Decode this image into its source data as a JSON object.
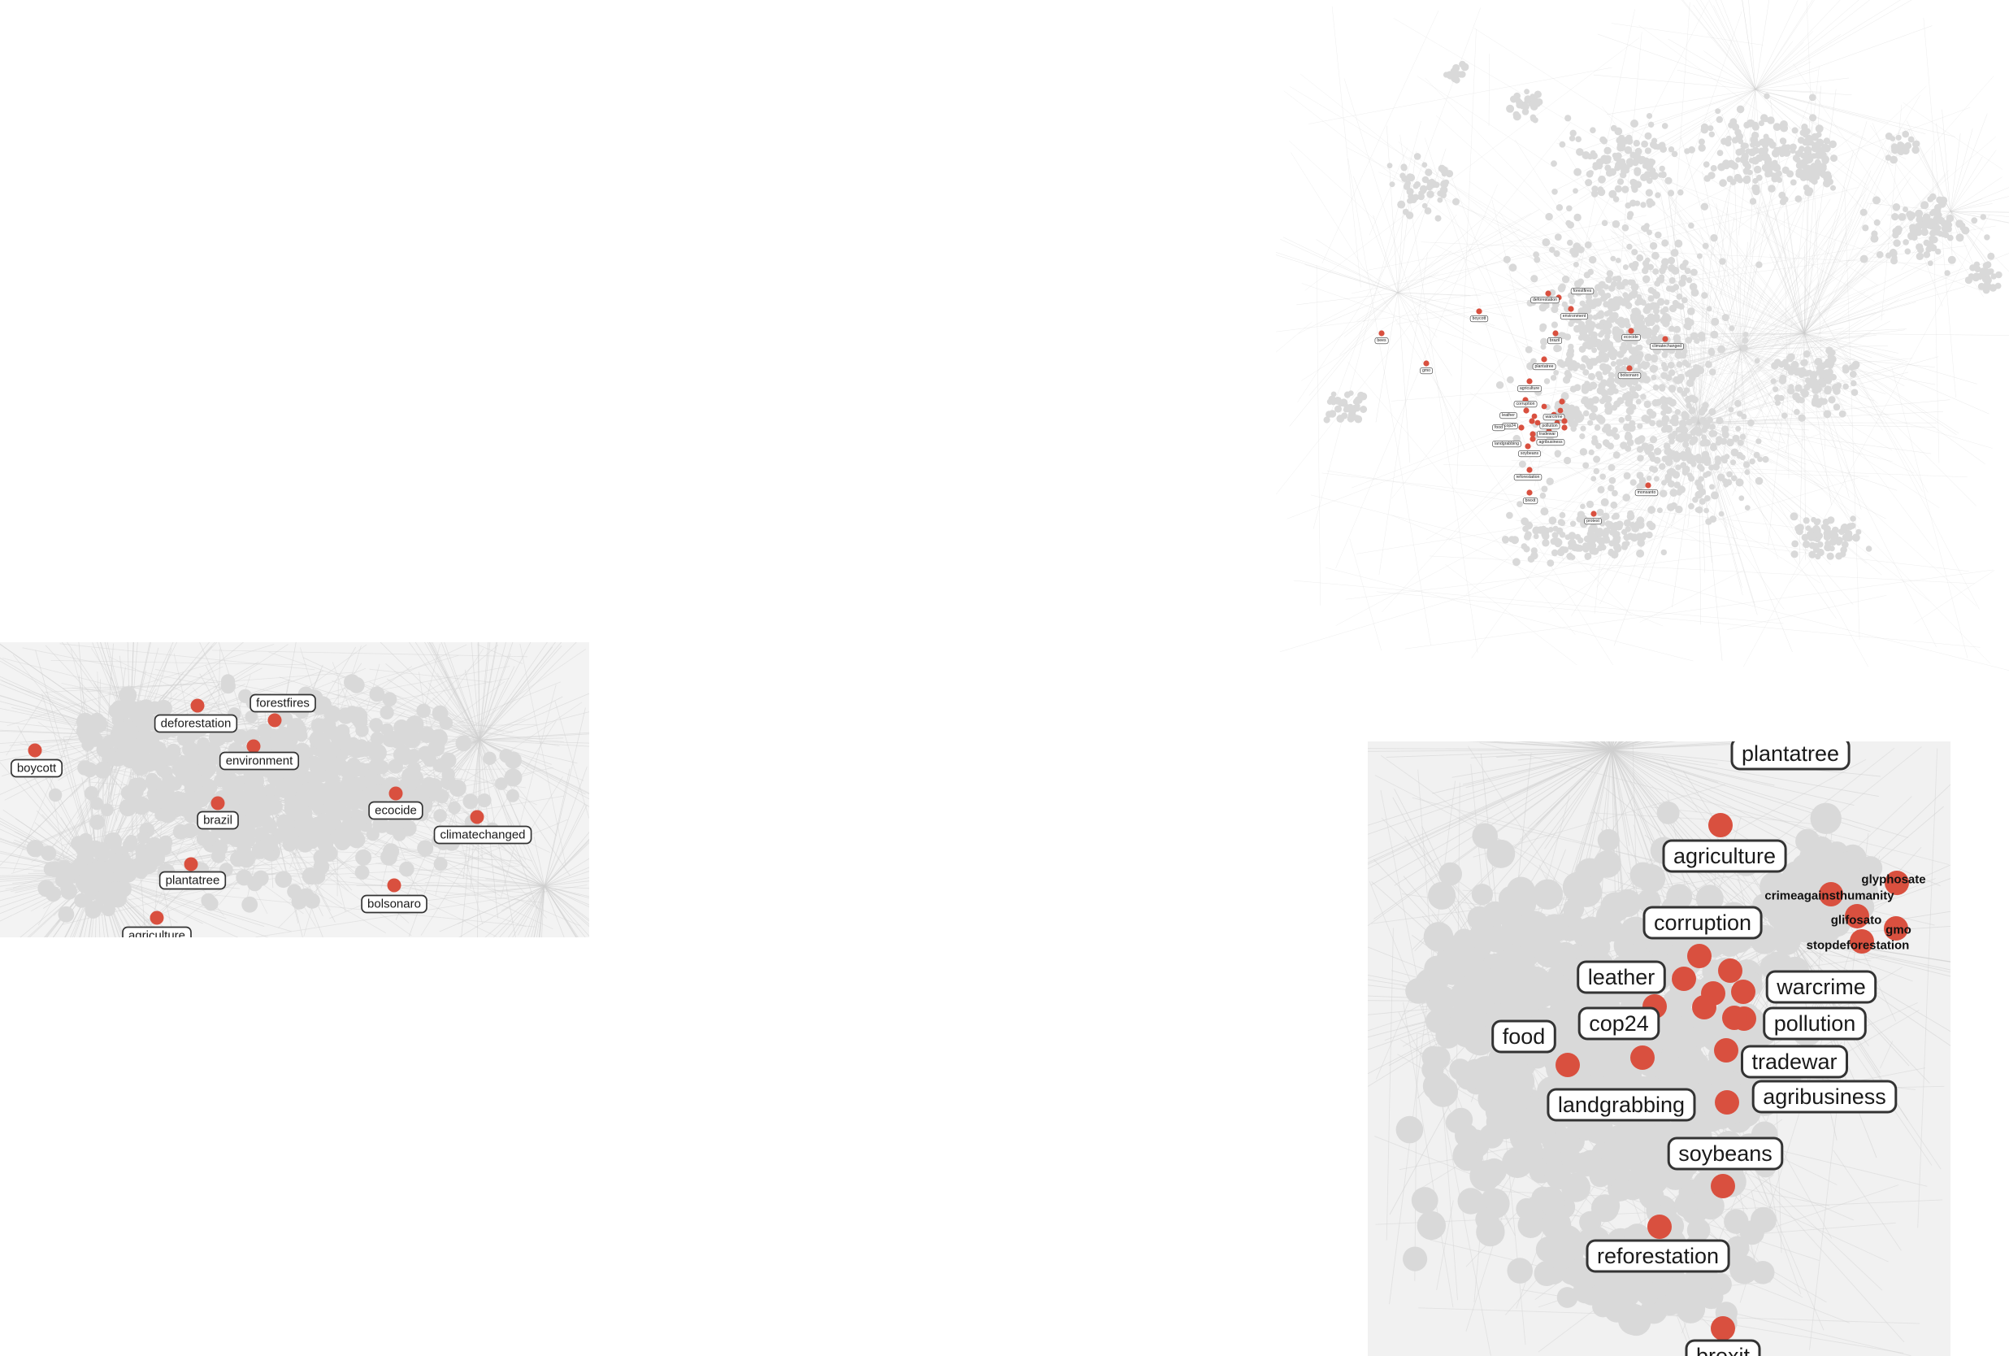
{
  "colors": {
    "highlight_node": "#d9503f",
    "background_node": "#d9d9d9",
    "edge": "#cfcfcf",
    "label_border": "#333333"
  },
  "overview_panel": {
    "labels": [
      "forestfires",
      "deforestation",
      "environment",
      "boycott",
      "brazil",
      "ecocide",
      "climatechanged",
      "bees",
      "gmo",
      "plantatree",
      "bolsonaro",
      "agriculture",
      "corruption",
      "leather",
      "warcrime",
      "cop24",
      "pollution",
      "food",
      "tradewar",
      "landgrabbing",
      "agribusiness",
      "soybeans",
      "reforestation",
      "brexit",
      "monsanto",
      "protest"
    ]
  },
  "zoom_left_panel": {
    "labels": [
      "forestfires",
      "deforestation",
      "boycott",
      "environment",
      "brazil",
      "ecocide",
      "climatechanged",
      "plantatree",
      "bolsonaro",
      "agriculture"
    ]
  },
  "zoom_right_panel": {
    "labels": [
      "plantatree",
      "agriculture",
      "corruption",
      "leather",
      "warcrime",
      "cop24",
      "pollution",
      "food",
      "tradewar",
      "landgrabbing",
      "agribusiness",
      "soybeans",
      "reforestation",
      "brexit"
    ],
    "small_labels": [
      "glyphosate",
      "crimeagainsthumanity",
      "glifosato",
      "gmo",
      "stopdeforestation"
    ]
  }
}
